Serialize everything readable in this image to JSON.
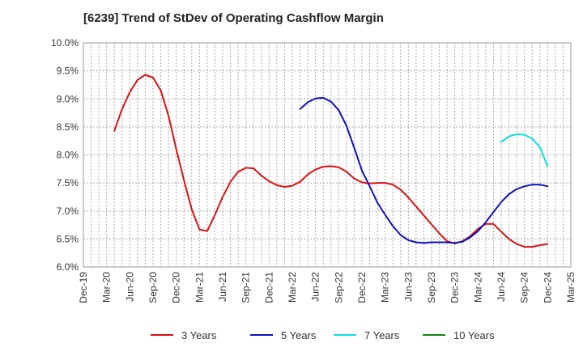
{
  "chart_data": {
    "type": "line",
    "title": "[6239]  Trend of StDev of Operating Cashflow Margin",
    "xlabel": "",
    "ylabel": "",
    "x_ticks": [
      "Dec-19",
      "Mar-20",
      "Jun-20",
      "Sep-20",
      "Dec-20",
      "Mar-21",
      "Jun-21",
      "Sep-21",
      "Dec-21",
      "Mar-22",
      "Jun-22",
      "Sep-22",
      "Dec-22",
      "Mar-23",
      "Jun-23",
      "Sep-23",
      "Dec-23",
      "Mar-24",
      "Jun-24",
      "Sep-24",
      "Dec-24",
      "Mar-25"
    ],
    "y_ticks": [
      "6.0%",
      "6.5%",
      "7.0%",
      "7.5%",
      "8.0%",
      "8.5%",
      "9.0%",
      "9.5%",
      "10.0%"
    ],
    "ylim": [
      6.0,
      10.0
    ],
    "grid": true,
    "legend_position": "bottom",
    "series": [
      {
        "name": "3 Years",
        "color": "#dd1111",
        "x": [
          "Apr-20",
          "May-20",
          "Jun-20",
          "Jul-20",
          "Aug-20",
          "Sep-20",
          "Oct-20",
          "Nov-20",
          "Dec-20",
          "Jan-21",
          "Feb-21",
          "Mar-21",
          "Apr-21",
          "May-21",
          "Jun-21",
          "Jul-21",
          "Aug-21",
          "Sep-21",
          "Oct-21",
          "Nov-21",
          "Dec-21",
          "Jan-22",
          "Feb-22",
          "Mar-22",
          "Apr-22",
          "May-22",
          "Jun-22",
          "Jul-22",
          "Aug-22",
          "Sep-22",
          "Oct-22",
          "Nov-22",
          "Dec-22",
          "Jan-23",
          "Feb-23",
          "Mar-23",
          "Apr-23",
          "May-23",
          "Jun-23",
          "Jul-23",
          "Aug-23",
          "Sep-23",
          "Oct-23",
          "Nov-23",
          "Dec-23",
          "Jan-24",
          "Feb-24",
          "Mar-24",
          "Apr-24",
          "May-24",
          "Jun-24",
          "Jul-24",
          "Aug-24",
          "Sep-24",
          "Oct-24",
          "Nov-24",
          "Dec-24"
        ],
        "values": [
          8.43,
          8.82,
          9.12,
          9.34,
          9.43,
          9.38,
          9.15,
          8.7,
          8.1,
          7.55,
          7.03,
          6.67,
          6.64,
          6.93,
          7.25,
          7.52,
          7.7,
          7.77,
          7.76,
          7.63,
          7.53,
          7.46,
          7.43,
          7.45,
          7.52,
          7.65,
          7.74,
          7.79,
          7.8,
          7.78,
          7.7,
          7.58,
          7.51,
          7.49,
          7.5,
          7.5,
          7.47,
          7.38,
          7.24,
          7.08,
          6.92,
          6.76,
          6.6,
          6.46,
          6.42,
          6.46,
          6.55,
          6.68,
          6.77,
          6.77,
          6.63,
          6.5,
          6.41,
          6.36,
          6.36,
          6.39,
          6.41
        ]
      },
      {
        "name": "5 Years",
        "color": "#1111bb",
        "x": [
          "Apr-22",
          "May-22",
          "Jun-22",
          "Jul-22",
          "Aug-22",
          "Sep-22",
          "Oct-22",
          "Nov-22",
          "Dec-22",
          "Jan-23",
          "Feb-23",
          "Mar-23",
          "Apr-23",
          "May-23",
          "Jun-23",
          "Jul-23",
          "Aug-23",
          "Sep-23",
          "Oct-23",
          "Nov-23",
          "Dec-23",
          "Jan-24",
          "Feb-24",
          "Mar-24",
          "Apr-24",
          "May-24",
          "Jun-24",
          "Jul-24",
          "Aug-24",
          "Sep-24",
          "Oct-24",
          "Nov-24",
          "Dec-24"
        ],
        "values": [
          8.82,
          8.94,
          9.01,
          9.02,
          8.95,
          8.8,
          8.52,
          8.13,
          7.72,
          7.44,
          7.15,
          6.93,
          6.73,
          6.57,
          6.48,
          6.44,
          6.43,
          6.44,
          6.44,
          6.44,
          6.43,
          6.45,
          6.53,
          6.64,
          6.8,
          6.98,
          7.16,
          7.3,
          7.39,
          7.44,
          7.47,
          7.47,
          7.44
        ]
      },
      {
        "name": "7 Years",
        "color": "#11dddd",
        "x": [
          "Jun-24",
          "Jul-24",
          "Aug-24",
          "Sep-24",
          "Oct-24",
          "Nov-24",
          "Dec-24"
        ],
        "values": [
          8.23,
          8.33,
          8.37,
          8.36,
          8.29,
          8.14,
          7.79
        ]
      },
      {
        "name": "10 Years",
        "color": "#118811",
        "x": [],
        "values": []
      }
    ]
  }
}
